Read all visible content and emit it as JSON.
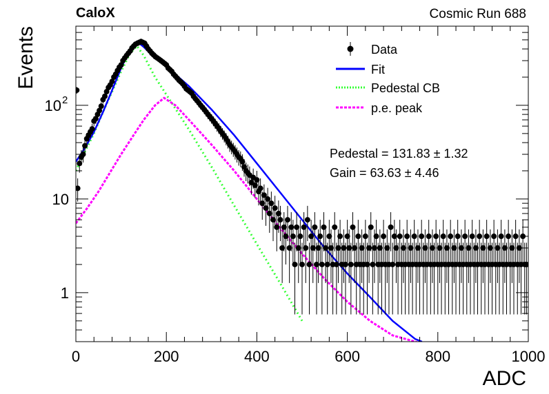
{
  "header": {
    "left": "CaloX",
    "right": "Cosmic Run 688"
  },
  "stats": {
    "pedestal": "Pedestal = 131.83 ± 1.32",
    "gain": "Gain = 63.63 ± 4.46"
  },
  "legend": [
    {
      "label": "Data",
      "style": "marker",
      "color": "#000000"
    },
    {
      "label": "Fit",
      "style": "solid",
      "color": "#0000ff"
    },
    {
      "label": "Pedestal CB",
      "style": "dotted",
      "color": "#33ff33"
    },
    {
      "label": "p.e. peak",
      "style": "dashed",
      "color": "#ff00ff"
    }
  ],
  "chart_data": {
    "type": "scatter",
    "title": "",
    "xlabel": "ADC",
    "ylabel": "Events",
    "xlim": [
      0,
      1000
    ],
    "ylim": [
      0.3,
      700
    ],
    "ylog": true,
    "grid": false,
    "legend_position": "top-right",
    "x_ticks": [
      0,
      200,
      400,
      600,
      800,
      1000
    ],
    "y_ticks": [
      {
        "value": 1,
        "label": "1"
      },
      {
        "value": 10,
        "label": "10"
      },
      {
        "value": 100,
        "label": "10",
        "sup": "2"
      }
    ],
    "data_points": [
      [
        2,
        145
      ],
      [
        4,
        13
      ],
      [
        8,
        24
      ],
      [
        12,
        28
      ],
      [
        16,
        30
      ],
      [
        20,
        37
      ],
      [
        24,
        44
      ],
      [
        28,
        48
      ],
      [
        32,
        52
      ],
      [
        36,
        56
      ],
      [
        40,
        68
      ],
      [
        44,
        72
      ],
      [
        48,
        80
      ],
      [
        52,
        88
      ],
      [
        56,
        98
      ],
      [
        60,
        115
      ],
      [
        64,
        125
      ],
      [
        68,
        140
      ],
      [
        72,
        155
      ],
      [
        76,
        165
      ],
      [
        80,
        180
      ],
      [
        84,
        200
      ],
      [
        88,
        215
      ],
      [
        92,
        235
      ],
      [
        96,
        255
      ],
      [
        100,
        270
      ],
      [
        104,
        300
      ],
      [
        108,
        320
      ],
      [
        112,
        340
      ],
      [
        116,
        360
      ],
      [
        120,
        380
      ],
      [
        124,
        410
      ],
      [
        128,
        430
      ],
      [
        132,
        450
      ],
      [
        136,
        460
      ],
      [
        140,
        470
      ],
      [
        144,
        480
      ],
      [
        148,
        470
      ],
      [
        152,
        460
      ],
      [
        156,
        430
      ],
      [
        160,
        400
      ],
      [
        164,
        380
      ],
      [
        168,
        360
      ],
      [
        172,
        345
      ],
      [
        176,
        330
      ],
      [
        180,
        320
      ],
      [
        184,
        310
      ],
      [
        188,
        300
      ],
      [
        192,
        290
      ],
      [
        196,
        280
      ],
      [
        200,
        270
      ],
      [
        204,
        250
      ],
      [
        208,
        240
      ],
      [
        212,
        230
      ],
      [
        216,
        215
      ],
      [
        220,
        205
      ],
      [
        224,
        195
      ],
      [
        228,
        185
      ],
      [
        232,
        178
      ],
      [
        236,
        170
      ],
      [
        240,
        160
      ],
      [
        244,
        150
      ],
      [
        248,
        145
      ],
      [
        252,
        140
      ],
      [
        256,
        135
      ],
      [
        260,
        125
      ],
      [
        264,
        118
      ],
      [
        268,
        112
      ],
      [
        272,
        106
      ],
      [
        276,
        100
      ],
      [
        280,
        95
      ],
      [
        284,
        90
      ],
      [
        288,
        85
      ],
      [
        292,
        80
      ],
      [
        296,
        76
      ],
      [
        300,
        72
      ],
      [
        304,
        68
      ],
      [
        308,
        64
      ],
      [
        312,
        60
      ],
      [
        316,
        57
      ],
      [
        320,
        53
      ],
      [
        324,
        50
      ],
      [
        328,
        47
      ],
      [
        332,
        44
      ],
      [
        336,
        41
      ],
      [
        340,
        38
      ],
      [
        344,
        36
      ],
      [
        348,
        34
      ],
      [
        352,
        32
      ],
      [
        356,
        30
      ],
      [
        360,
        28
      ],
      [
        364,
        27
      ],
      [
        368,
        25
      ],
      [
        372,
        22
      ],
      [
        376,
        20
      ],
      [
        380,
        19
      ],
      [
        384,
        18
      ],
      [
        388,
        15
      ],
      [
        392,
        17
      ],
      [
        396,
        14
      ],
      [
        400,
        16
      ],
      [
        404,
        12
      ],
      [
        408,
        13
      ],
      [
        412,
        9
      ],
      [
        416,
        11
      ],
      [
        420,
        8
      ],
      [
        424,
        10
      ],
      [
        428,
        7
      ],
      [
        432,
        9
      ],
      [
        436,
        6
      ],
      [
        440,
        8
      ],
      [
        444,
        5
      ],
      [
        448,
        7
      ],
      [
        452,
        6
      ],
      [
        456,
        3
      ],
      [
        460,
        5
      ],
      [
        464,
        4
      ],
      [
        468,
        6
      ],
      [
        472,
        3
      ],
      [
        476,
        5
      ],
      [
        480,
        4
      ],
      [
        484,
        2
      ],
      [
        488,
        5
      ],
      [
        492,
        3
      ],
      [
        496,
        4
      ],
      [
        500,
        2
      ],
      [
        504,
        5
      ],
      [
        508,
        3
      ],
      [
        512,
        6
      ],
      [
        516,
        2
      ],
      [
        520,
        4
      ],
      [
        524,
        3
      ],
      [
        528,
        5
      ],
      [
        532,
        2
      ],
      [
        536,
        3
      ],
      [
        540,
        4
      ],
      [
        544,
        2
      ],
      [
        548,
        5
      ],
      [
        552,
        3
      ],
      [
        556,
        2
      ],
      [
        560,
        4
      ],
      [
        564,
        3
      ],
      [
        568,
        2
      ],
      [
        572,
        5
      ],
      [
        576,
        2
      ],
      [
        580,
        3
      ],
      [
        584,
        4
      ],
      [
        588,
        2
      ],
      [
        592,
        3
      ],
      [
        596,
        2
      ],
      [
        600,
        4
      ],
      [
        604,
        3
      ],
      [
        608,
        2
      ],
      [
        612,
        5
      ],
      [
        616,
        3
      ],
      [
        620,
        2
      ],
      [
        624,
        4
      ],
      [
        628,
        2
      ],
      [
        632,
        3
      ],
      [
        636,
        2
      ],
      [
        640,
        4
      ],
      [
        644,
        2
      ],
      [
        648,
        3
      ],
      [
        652,
        5
      ],
      [
        656,
        2
      ],
      [
        660,
        3
      ],
      [
        664,
        4
      ],
      [
        668,
        2
      ],
      [
        672,
        3
      ],
      [
        676,
        2
      ],
      [
        680,
        4
      ],
      [
        684,
        2
      ],
      [
        688,
        3
      ],
      [
        692,
        2
      ],
      [
        696,
        5
      ],
      [
        700,
        2
      ],
      [
        704,
        4
      ],
      [
        708,
        3
      ],
      [
        712,
        2
      ],
      [
        716,
        4
      ],
      [
        720,
        2
      ],
      [
        724,
        3
      ],
      [
        728,
        2
      ],
      [
        732,
        4
      ],
      [
        736,
        2
      ],
      [
        740,
        3
      ],
      [
        744,
        2
      ],
      [
        748,
        4
      ],
      [
        752,
        2
      ],
      [
        756,
        3
      ],
      [
        760,
        2
      ],
      [
        764,
        4
      ],
      [
        768,
        2
      ],
      [
        772,
        3
      ],
      [
        776,
        2
      ],
      [
        780,
        4
      ],
      [
        784,
        2
      ],
      [
        788,
        3
      ],
      [
        792,
        2
      ],
      [
        796,
        4
      ],
      [
        800,
        2
      ],
      [
        804,
        3
      ],
      [
        808,
        2
      ],
      [
        812,
        4
      ],
      [
        816,
        2
      ],
      [
        820,
        3
      ],
      [
        824,
        2
      ],
      [
        828,
        4
      ],
      [
        832,
        2
      ],
      [
        836,
        3
      ],
      [
        840,
        2
      ],
      [
        844,
        4
      ],
      [
        848,
        2
      ],
      [
        852,
        3
      ],
      [
        856,
        2
      ],
      [
        860,
        4
      ],
      [
        864,
        2
      ],
      [
        868,
        3
      ],
      [
        872,
        2
      ],
      [
        876,
        4
      ],
      [
        880,
        2
      ],
      [
        884,
        3
      ],
      [
        888,
        2
      ],
      [
        892,
        4
      ],
      [
        896,
        2
      ],
      [
        900,
        3
      ],
      [
        904,
        2
      ],
      [
        908,
        4
      ],
      [
        912,
        2
      ],
      [
        916,
        3
      ],
      [
        920,
        2
      ],
      [
        924,
        4
      ],
      [
        928,
        2
      ],
      [
        932,
        3
      ],
      [
        936,
        2
      ],
      [
        940,
        4
      ],
      [
        944,
        2
      ],
      [
        948,
        3
      ],
      [
        952,
        2
      ],
      [
        956,
        4
      ],
      [
        960,
        2
      ],
      [
        964,
        3
      ],
      [
        968,
        2
      ],
      [
        972,
        4
      ],
      [
        976,
        2
      ],
      [
        980,
        3
      ],
      [
        984,
        2
      ],
      [
        988,
        4
      ],
      [
        992,
        2
      ],
      [
        996,
        2
      ]
    ],
    "fit": {
      "x": [
        0,
        20,
        40,
        60,
        80,
        100,
        120,
        135,
        150,
        175,
        200,
        250,
        300,
        350,
        400,
        450,
        500,
        550,
        600,
        650,
        700,
        750,
        765
      ],
      "y": [
        25,
        35,
        52,
        85,
        145,
        250,
        400,
        480,
        420,
        320,
        260,
        160,
        90,
        48,
        24,
        12,
        6,
        3,
        1.6,
        0.9,
        0.5,
        0.32,
        0.3
      ]
    },
    "pedestal_cb": {
      "x": [
        0,
        20,
        40,
        60,
        80,
        100,
        120,
        135,
        150,
        175,
        200,
        250,
        300,
        350,
        400,
        450,
        500
      ],
      "y": [
        20,
        32,
        50,
        85,
        140,
        230,
        360,
        430,
        340,
        200,
        130,
        55,
        22,
        8.5,
        3.3,
        1.3,
        0.5
      ]
    },
    "pe_peak": {
      "x": [
        0,
        25,
        50,
        75,
        100,
        125,
        150,
        175,
        195,
        220,
        250,
        300,
        350,
        400,
        450,
        500,
        550,
        600,
        650,
        700,
        750,
        760
      ],
      "y": [
        5.5,
        8,
        12,
        19,
        30,
        46,
        70,
        100,
        120,
        100,
        70,
        38,
        20,
        10,
        5,
        2.6,
        1.4,
        0.8,
        0.5,
        0.35,
        0.3,
        0.29
      ]
    }
  }
}
